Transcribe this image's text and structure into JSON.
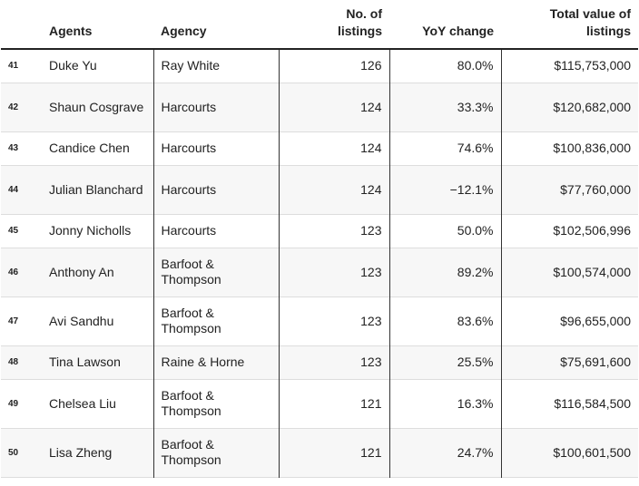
{
  "headers": {
    "agents": "Agents",
    "agency": "Agency",
    "listings_line1": "No. of",
    "listings_line2": "listings",
    "yoy": "YoY change",
    "value_line1": "Total value of",
    "value_line2": "listings"
  },
  "rows": [
    {
      "rank": "41",
      "agent": "Duke Yu",
      "agency": "Ray White",
      "listings": "126",
      "yoy": "80.0%",
      "value": "$115,753,000"
    },
    {
      "rank": "42",
      "agent": "Shaun Cosgrave",
      "agency": "Harcourts",
      "listings": "124",
      "yoy": "33.3%",
      "value": "$120,682,000"
    },
    {
      "rank": "43",
      "agent": "Candice Chen",
      "agency": "Harcourts",
      "listings": "124",
      "yoy": "74.6%",
      "value": "$100,836,000"
    },
    {
      "rank": "44",
      "agent": "Julian Blanchard",
      "agency": "Harcourts",
      "listings": "124",
      "yoy": "−12.1%",
      "value": "$77,760,000"
    },
    {
      "rank": "45",
      "agent": "Jonny Nicholls",
      "agency": "Harcourts",
      "listings": "123",
      "yoy": "50.0%",
      "value": "$102,506,996"
    },
    {
      "rank": "46",
      "agent": "Anthony An",
      "agency": "Barfoot & Thompson",
      "listings": "123",
      "yoy": "89.2%",
      "value": "$100,574,000"
    },
    {
      "rank": "47",
      "agent": "Avi Sandhu",
      "agency": "Barfoot & Thompson",
      "listings": "123",
      "yoy": "83.6%",
      "value": "$96,655,000"
    },
    {
      "rank": "48",
      "agent": "Tina Lawson",
      "agency": "Raine & Horne",
      "listings": "123",
      "yoy": "25.5%",
      "value": "$75,691,600"
    },
    {
      "rank": "49",
      "agent": "Chelsea Liu",
      "agency": "Barfoot & Thompson",
      "listings": "121",
      "yoy": "16.3%",
      "value": "$116,584,500"
    },
    {
      "rank": "50",
      "agent": "Lisa Zheng",
      "agency": "Barfoot & Thompson",
      "listings": "121",
      "yoy": "24.7%",
      "value": "$100,601,500"
    }
  ]
}
